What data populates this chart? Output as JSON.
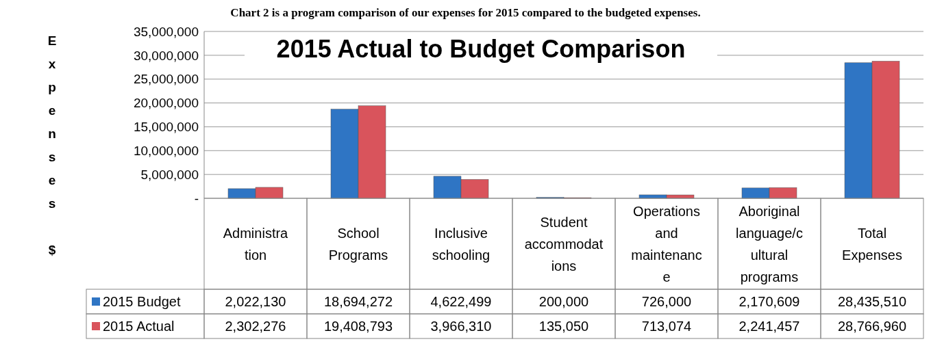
{
  "chart_data": {
    "type": "bar",
    "title": "2015 Actual to Budget Comparison",
    "ylabel": "Expenses $",
    "annotations": [
      "Chart 2 is a program comparison of our expenses for 2015 compared to the budgeted expenses."
    ],
    "categories": [
      "Administration",
      "School Programs",
      "Inclusive schooling",
      "Student accommodations",
      "Operations and maintenance",
      "Aboriginal language/cultural programs",
      "Total Expenses"
    ],
    "series": [
      {
        "name": "2015 Budget",
        "color": "#2f75c4",
        "values": [
          2022130,
          18694272,
          4622499,
          200000,
          726000,
          2170609,
          28435510
        ],
        "value_labels": [
          "2,022,130",
          "18,694,272",
          "4,622,499",
          "200,000",
          "726,000",
          "2,170,609",
          "28,435,510"
        ]
      },
      {
        "name": "2015 Actual",
        "color": "#d9545c",
        "values": [
          2302276,
          19408793,
          3966310,
          135050,
          713074,
          2241457,
          28766960
        ],
        "value_labels": [
          "2,302,276",
          "19,408,793",
          "3,966,310",
          "135,050",
          "713,074",
          "2,241,457",
          "28,766,960"
        ]
      }
    ],
    "ylim": [
      0,
      35000000
    ],
    "yticks": [
      {
        "value": 0,
        "label": "-"
      },
      {
        "value": 5000000,
        "label": "5,000,000"
      },
      {
        "value": 10000000,
        "label": "10,000,000"
      },
      {
        "value": 15000000,
        "label": "15,000,000"
      },
      {
        "value": 20000000,
        "label": "20,000,000"
      },
      {
        "value": 25000000,
        "label": "25,000,000"
      },
      {
        "value": 30000000,
        "label": "30,000,000"
      },
      {
        "value": 35000000,
        "label": "35,000,000"
      }
    ],
    "grid": true,
    "legend": "bottom left"
  }
}
